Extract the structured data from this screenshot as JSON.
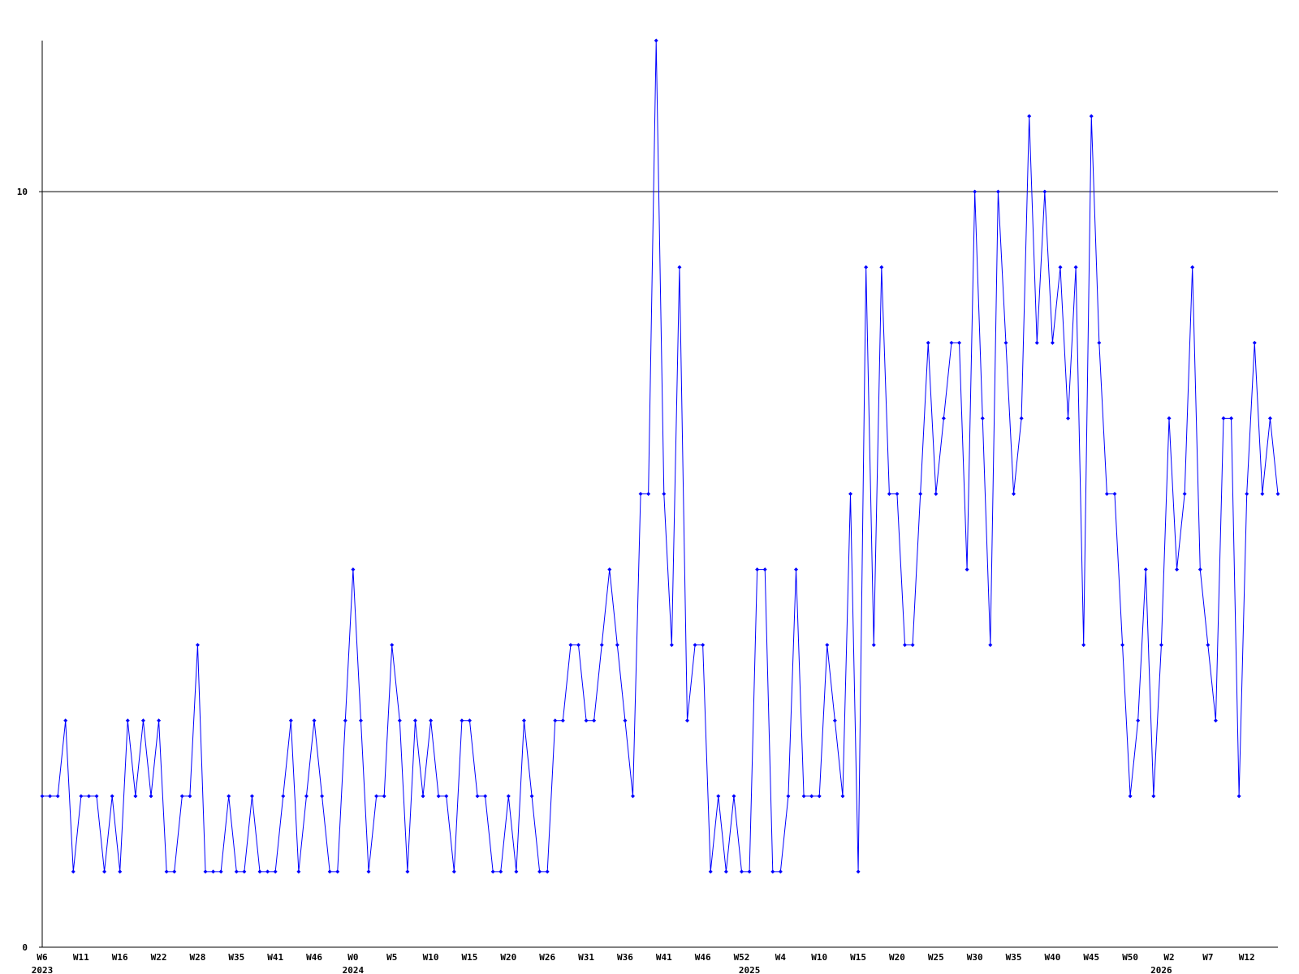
{
  "chart_data": {
    "type": "line",
    "categories": [
      "W6",
      null,
      null,
      null,
      null,
      "W11",
      null,
      null,
      null,
      null,
      "W16",
      null,
      null,
      null,
      null,
      "W22",
      null,
      null,
      null,
      null,
      "W28",
      null,
      null,
      null,
      null,
      "W35",
      null,
      null,
      null,
      null,
      "W41",
      null,
      null,
      null,
      null,
      "W46",
      null,
      null,
      null,
      null,
      "W0",
      null,
      null,
      null,
      null,
      "W5",
      null,
      null,
      null,
      null,
      "W10",
      null,
      null,
      null,
      null,
      "W15",
      null,
      null,
      null,
      null,
      "W20",
      null,
      null,
      null,
      null,
      "W26",
      null,
      null,
      null,
      null,
      "W31",
      null,
      null,
      null,
      null,
      "W36",
      null,
      null,
      null,
      null,
      "W41",
      null,
      null,
      null,
      null,
      "W46",
      null,
      null,
      null,
      null,
      "W52",
      null,
      null,
      null,
      null,
      "W4",
      null,
      null,
      null,
      null,
      "W10",
      null,
      null,
      null,
      null,
      "W15",
      null,
      null,
      null,
      null,
      "W20",
      null,
      null,
      null,
      null,
      "W25",
      null,
      null,
      null,
      null,
      "W30",
      null,
      null,
      null,
      null,
      "W35",
      null,
      null,
      null,
      null,
      "W40",
      null,
      null,
      null,
      null,
      "W45",
      null,
      null,
      null,
      null,
      "W50",
      null,
      null,
      null,
      null,
      "W2",
      null,
      null,
      null,
      null,
      "W7",
      null,
      null,
      null,
      null,
      "W12",
      null,
      null,
      null,
      null
    ],
    "years": [
      "2023",
      null,
      null,
      null,
      null,
      null,
      null,
      null,
      null,
      null,
      null,
      null,
      null,
      null,
      null,
      null,
      null,
      null,
      null,
      null,
      null,
      null,
      null,
      null,
      null,
      null,
      null,
      null,
      null,
      null,
      null,
      null,
      null,
      null,
      null,
      null,
      null,
      null,
      null,
      null,
      "2024",
      null,
      null,
      null,
      null,
      null,
      null,
      null,
      null,
      null,
      null,
      null,
      null,
      null,
      null,
      null,
      null,
      null,
      null,
      null,
      null,
      null,
      null,
      null,
      null,
      null,
      null,
      null,
      null,
      null,
      null,
      null,
      null,
      null,
      null,
      null,
      null,
      null,
      null,
      null,
      null,
      null,
      null,
      null,
      null,
      null,
      null,
      null,
      null,
      null,
      null,
      "2025",
      null,
      null,
      null,
      null,
      null,
      null,
      null,
      null,
      null,
      null,
      null,
      null,
      null,
      null,
      null,
      null,
      null,
      null,
      null,
      null,
      null,
      null,
      null,
      null,
      null,
      null,
      null,
      null,
      null,
      null,
      null,
      null,
      null,
      null,
      null,
      null,
      null,
      null,
      null,
      null,
      null,
      null,
      null,
      null,
      null,
      null,
      null,
      null,
      null,
      null,
      null,
      null,
      "2026",
      null,
      null,
      null,
      null,
      null,
      null,
      null,
      null,
      null,
      null,
      null,
      null,
      null,
      null,
      null
    ],
    "series": [
      {
        "color": "#0000ff",
        "values": [
          2,
          2,
          2,
          3,
          1,
          2,
          2,
          2,
          1,
          2,
          1,
          3,
          2,
          3,
          2,
          3,
          1,
          1,
          2,
          2,
          4,
          1,
          1,
          1,
          2,
          1,
          1,
          2,
          1,
          1,
          1,
          2,
          3,
          1,
          2,
          3,
          2,
          1,
          1,
          3,
          5,
          3,
          1,
          2,
          2,
          4,
          3,
          1,
          3,
          2,
          3,
          2,
          2,
          1,
          3,
          3,
          2,
          2,
          1,
          1,
          2,
          1,
          3,
          2,
          1,
          1,
          3,
          3,
          4,
          4,
          3,
          3,
          4,
          5,
          4,
          3,
          2,
          6,
          6,
          12,
          6,
          4,
          9,
          3,
          4,
          4,
          1,
          2,
          1,
          2,
          1,
          1,
          5,
          5,
          1,
          1,
          2,
          5,
          2,
          2,
          2,
          4,
          3,
          2,
          6,
          1,
          9,
          4,
          9,
          6,
          6,
          4,
          4,
          6,
          8,
          6,
          7,
          8,
          8,
          5,
          10,
          7,
          4,
          10,
          8,
          6,
          7,
          11,
          8,
          10,
          8,
          9,
          7,
          9,
          4,
          11,
          8,
          6,
          6,
          4,
          2,
          3,
          5,
          2,
          4,
          7,
          5,
          6,
          9,
          5,
          4,
          3,
          7,
          7,
          2,
          6,
          8,
          6,
          7,
          6
        ]
      }
    ],
    "ylim": [
      0,
      12
    ],
    "yticks": [
      0,
      10
    ],
    "grid": true
  }
}
